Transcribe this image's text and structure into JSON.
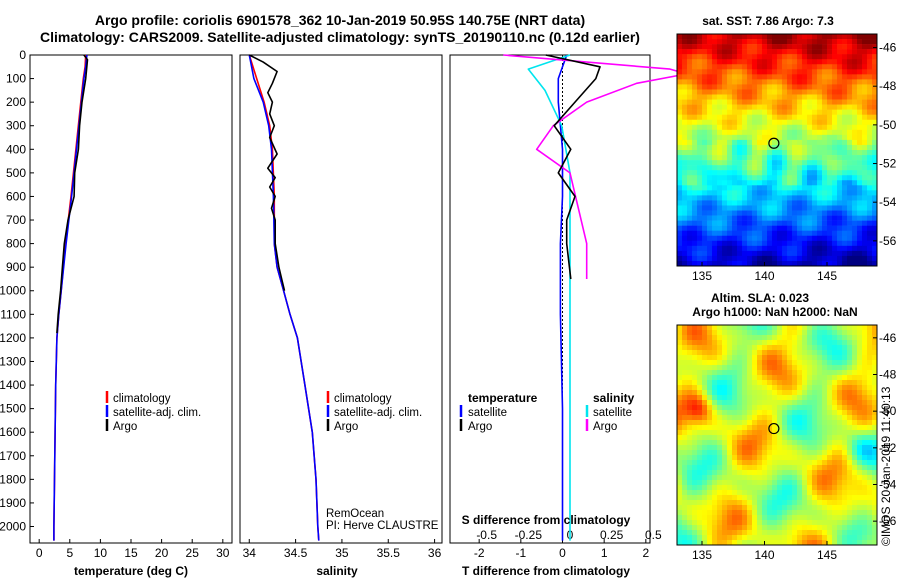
{
  "title": {
    "line1": "Argo profile: coriolis 6901578_362 10-Jan-2019 50.95S 140.75E (NRT data)",
    "line2": "Climatology: CARS2009. Satellite-adjusted climatology: synTS_20190110.nc (0.12d earlier)"
  },
  "colors": {
    "climatology": "#ff0000",
    "satellite": "#0000ff",
    "argo": "#000000",
    "sat_salinity": "#00e5ee",
    "argo_salinity": "#ff00ff"
  },
  "depth_axis": {
    "ticks": [
      "0",
      "100",
      "200",
      "300",
      "400",
      "500",
      "600",
      "700",
      "800",
      "900",
      "1000",
      "1100",
      "1200",
      "1300",
      "1400",
      "1500",
      "1600",
      "1700",
      "1800",
      "1900",
      "2000"
    ],
    "ylim": [
      0,
      2070
    ]
  },
  "panel_temperature": {
    "xlabel": "temperature (deg C)",
    "xticks": [
      "0",
      "5",
      "10",
      "15",
      "20",
      "25",
      "30"
    ],
    "xlim": [
      -1.5,
      31.5
    ],
    "legend": [
      "climatology",
      "satellite-adj. clim.",
      "Argo"
    ]
  },
  "panel_salinity": {
    "xlabel": "salinity",
    "xticks": [
      "34",
      "34.5",
      "35",
      "35.5",
      "36"
    ],
    "xlim": [
      33.9,
      36.08
    ],
    "legend": [
      "climatology",
      "satellite-adj. clim.",
      "Argo"
    ],
    "credit1": "RemOcean",
    "credit2": "PI: Herve CLAUSTRE"
  },
  "panel_difference": {
    "xlabel": "T difference from climatology",
    "s_label": "S difference from climatology",
    "t_ticks": [
      "-2",
      "-1",
      "0",
      "1",
      "2"
    ],
    "t_xlim": [
      -2.7,
      2.1
    ],
    "s_ticks": [
      "-0.5",
      "-0.25",
      "0",
      "0.25",
      "0.5"
    ],
    "legend_t_title": "temperature",
    "legend_s_title": "salinity",
    "legend_t": [
      "satellite",
      "Argo"
    ],
    "legend_s": [
      "satellite",
      "Argo"
    ]
  },
  "map_sst": {
    "title": "sat. SST: 7.86 Argo: 7.3",
    "yticks": [
      "-46",
      "-48",
      "-50",
      "-52",
      "-54",
      "-56"
    ],
    "xticks": [
      "135",
      "140",
      "145"
    ],
    "lon": [
      133,
      149
    ],
    "lat": [
      -57.3,
      -45.3
    ],
    "marker": [
      140.75,
      -50.95
    ]
  },
  "map_sla": {
    "title1": "Altim. SLA: 0.023",
    "title2": "Argo h1000: NaN h2000: NaN",
    "yticks": [
      "-46",
      "-48",
      "-50",
      "-52",
      "-54",
      "-56"
    ],
    "xticks": [
      "135",
      "140",
      "145"
    ],
    "lon": [
      133,
      149
    ],
    "lat": [
      -57.3,
      -45.3
    ],
    "marker": [
      140.75,
      -50.95
    ]
  },
  "stamp": "©IMOS 20-Jan-2019 11:40:13",
  "chart_data": [
    {
      "type": "line",
      "title": "temperature",
      "xlabel": "temperature (deg C)",
      "ylabel": "",
      "xlim": [
        -1.5,
        31.5
      ],
      "ylim": [
        0,
        2070
      ],
      "series": [
        {
          "name": "climatology",
          "x": [
            7.6,
            7.5,
            7.2,
            6.8,
            6.0,
            5.2,
            4.3,
            3.6,
            3.2,
            2.9,
            2.7,
            2.6,
            2.5,
            2.4,
            2.4
          ],
          "y": [
            0,
            50,
            100,
            200,
            400,
            600,
            800,
            1000,
            1100,
            1200,
            1400,
            1600,
            1800,
            2000,
            2060
          ]
        },
        {
          "name": "satellite-adj. clim.",
          "x": [
            7.8,
            7.6,
            7.3,
            6.9,
            6.1,
            5.3,
            4.4,
            3.6,
            3.2,
            2.9,
            2.7,
            2.6,
            2.5,
            2.4,
            2.4
          ],
          "y": [
            0,
            50,
            100,
            200,
            400,
            600,
            800,
            1000,
            1100,
            1200,
            1400,
            1600,
            1800,
            2000,
            2060
          ]
        },
        {
          "name": "Argo",
          "x": [
            7.3,
            7.9,
            7.6,
            7.0,
            6.6,
            6.4,
            5.8,
            5.7,
            4.7,
            4.1,
            3.8,
            3.5,
            3.3,
            3.1,
            2.9
          ],
          "y": [
            0,
            20,
            100,
            200,
            300,
            400,
            500,
            600,
            700,
            800,
            900,
            1000,
            1050,
            1100,
            1180
          ]
        }
      ]
    },
    {
      "type": "line",
      "title": "salinity",
      "xlabel": "salinity",
      "ylabel": "",
      "xlim": [
        33.9,
        36.08
      ],
      "ylim": [
        0,
        2070
      ],
      "series": [
        {
          "name": "climatology",
          "x": [
            34.0,
            34.08,
            34.16,
            34.22,
            34.25,
            34.27,
            34.27,
            34.3,
            34.37,
            34.44,
            34.52,
            34.6,
            34.68,
            34.72,
            34.74,
            34.75
          ],
          "y": [
            0,
            100,
            200,
            300,
            400,
            600,
            800,
            900,
            1000,
            1100,
            1200,
            1400,
            1600,
            1800,
            2000,
            2060
          ]
        },
        {
          "name": "satellite-adj. clim.",
          "x": [
            34.0,
            34.05,
            34.15,
            34.21,
            34.24,
            34.26,
            34.27,
            34.3,
            34.37,
            34.44,
            34.52,
            34.6,
            34.68,
            34.72,
            34.74,
            34.75
          ],
          "y": [
            0,
            100,
            200,
            300,
            400,
            600,
            800,
            900,
            1000,
            1100,
            1200,
            1400,
            1600,
            1800,
            2000,
            2060
          ]
        },
        {
          "name": "Argo",
          "x": [
            34.0,
            34.15,
            34.3,
            34.25,
            34.2,
            34.25,
            34.22,
            34.27,
            34.22,
            34.3,
            34.2,
            34.28,
            34.22,
            34.28,
            34.24,
            34.28,
            34.28,
            34.32,
            34.35,
            34.38
          ],
          "y": [
            0,
            30,
            70,
            120,
            160,
            200,
            250,
            300,
            350,
            420,
            480,
            520,
            560,
            600,
            650,
            700,
            800,
            900,
            950,
            1000
          ]
        }
      ]
    },
    {
      "type": "line",
      "title": "T and S difference from climatology",
      "xlabel": "T difference from climatology",
      "ylabel": "",
      "xlim": [
        -2.7,
        2.1
      ],
      "ylim": [
        0,
        2070
      ],
      "series": [
        {
          "name": "temperature satellite",
          "x": [
            0.1,
            -0.1,
            -0.1,
            0,
            0,
            -0.05,
            -0.05,
            -0.05,
            0,
            0
          ],
          "y": [
            0,
            100,
            200,
            400,
            600,
            800,
            1000,
            1100,
            1500,
            2060
          ]
        },
        {
          "name": "temperature Argo",
          "x": [
            -0.4,
            0.9,
            0.8,
            0.3,
            -0.2,
            0.2,
            -0.1,
            0.3,
            0.1,
            0.1,
            0.2
          ],
          "y": [
            0,
            50,
            100,
            200,
            300,
            400,
            500,
            600,
            700,
            800,
            950
          ]
        },
        {
          "name": "salinity satellite",
          "x": [
            0,
            -0.25,
            -0.15,
            -0.05,
            0,
            0,
            0,
            0,
            0,
            0
          ],
          "y": [
            0,
            60,
            150,
            300,
            500,
            800,
            1000,
            1200,
            1600,
            2060
          ]
        },
        {
          "name": "salinity Argo",
          "x": [
            -0.4,
            0.6,
            0.7,
            0.4,
            0.1,
            -0.1,
            -0.2,
            0,
            0.1,
            0.1
          ],
          "y": [
            0,
            60,
            80,
            120,
            200,
            300,
            400,
            500,
            800,
            950
          ]
        }
      ]
    }
  ]
}
